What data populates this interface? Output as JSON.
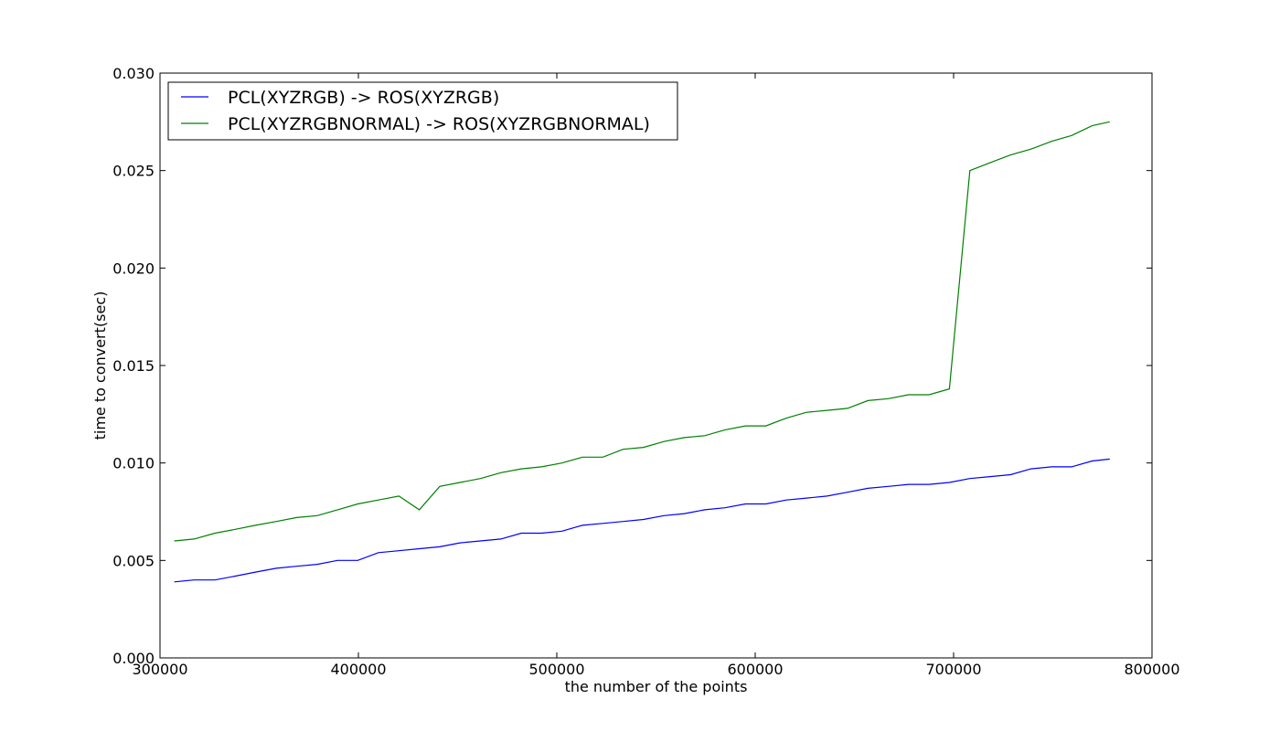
{
  "chart_data": {
    "type": "line",
    "title": "",
    "xlabel": "the number of the points",
    "ylabel": "time to convert(sec)",
    "xlim": [
      300000,
      800000
    ],
    "ylim": [
      0.0,
      0.03
    ],
    "xticks": [
      300000,
      400000,
      500000,
      600000,
      700000,
      800000
    ],
    "xtick_labels": [
      "300000",
      "400000",
      "500000",
      "600000",
      "700000",
      "800000"
    ],
    "yticks": [
      0.0,
      0.005,
      0.01,
      0.015,
      0.02,
      0.025,
      0.03
    ],
    "ytick_labels": [
      "0.000",
      "0.005",
      "0.010",
      "0.015",
      "0.020",
      "0.025",
      "0.030"
    ],
    "grid": false,
    "legend_position": "top-left",
    "series": [
      {
        "name": "PCL(XYZRGB) -> ROS(XYZRGB)",
        "color": "#0000ff",
        "x": [
          307200,
          317200,
          327700,
          338200,
          348100,
          358600,
          368900,
          379200,
          389500,
          399700,
          410100,
          420400,
          430700,
          441000,
          451200,
          461500,
          471800,
          482100,
          492300,
          502600,
          512900,
          523200,
          533400,
          543700,
          554000,
          564300,
          574600,
          584800,
          595100,
          605400,
          615700,
          625900,
          636200,
          646500,
          656800,
          667100,
          677300,
          687600,
          697900,
          708200,
          718400,
          728700,
          739000,
          749300,
          759500,
          769800,
          778700
        ],
        "y": [
          0.0039,
          0.004,
          0.004,
          0.0042,
          0.0044,
          0.0046,
          0.0047,
          0.0048,
          0.005,
          0.005,
          0.0054,
          0.0055,
          0.0056,
          0.0057,
          0.0059,
          0.006,
          0.0061,
          0.0064,
          0.0064,
          0.0065,
          0.0068,
          0.0069,
          0.007,
          0.0071,
          0.0073,
          0.0074,
          0.0076,
          0.0077,
          0.0079,
          0.0079,
          0.0081,
          0.0082,
          0.0083,
          0.0085,
          0.0087,
          0.0088,
          0.0089,
          0.0089,
          0.009,
          0.0092,
          0.0093,
          0.0094,
          0.0097,
          0.0098,
          0.0098,
          0.0101,
          0.0102
        ]
      },
      {
        "name": "PCL(XYZRGBNORMAL) -> ROS(XYZRGBNORMAL)",
        "color": "#008000",
        "x": [
          307200,
          317200,
          327700,
          338200,
          348100,
          358600,
          368900,
          379200,
          389500,
          399700,
          410100,
          420400,
          430700,
          441000,
          451200,
          461500,
          471800,
          482100,
          492300,
          502600,
          512900,
          523200,
          533400,
          543700,
          554000,
          564300,
          574600,
          584800,
          595100,
          605400,
          615700,
          625900,
          636200,
          646500,
          656800,
          667100,
          677300,
          687600,
          697900,
          708200,
          718400,
          728700,
          739000,
          749300,
          759500,
          769800,
          778700
        ],
        "y": [
          0.006,
          0.0061,
          0.0064,
          0.0066,
          0.0068,
          0.007,
          0.0072,
          0.0073,
          0.0076,
          0.0079,
          0.0081,
          0.0083,
          0.0076,
          0.0088,
          0.009,
          0.0092,
          0.0095,
          0.0097,
          0.0098,
          0.01,
          0.0103,
          0.0103,
          0.0107,
          0.0108,
          0.0111,
          0.0113,
          0.0114,
          0.0117,
          0.0119,
          0.0119,
          0.0123,
          0.0126,
          0.0127,
          0.0128,
          0.0132,
          0.0133,
          0.0135,
          0.0135,
          0.0138,
          0.025,
          0.0254,
          0.0258,
          0.0261,
          0.0265,
          0.0268,
          0.0273,
          0.0275
        ]
      }
    ]
  }
}
